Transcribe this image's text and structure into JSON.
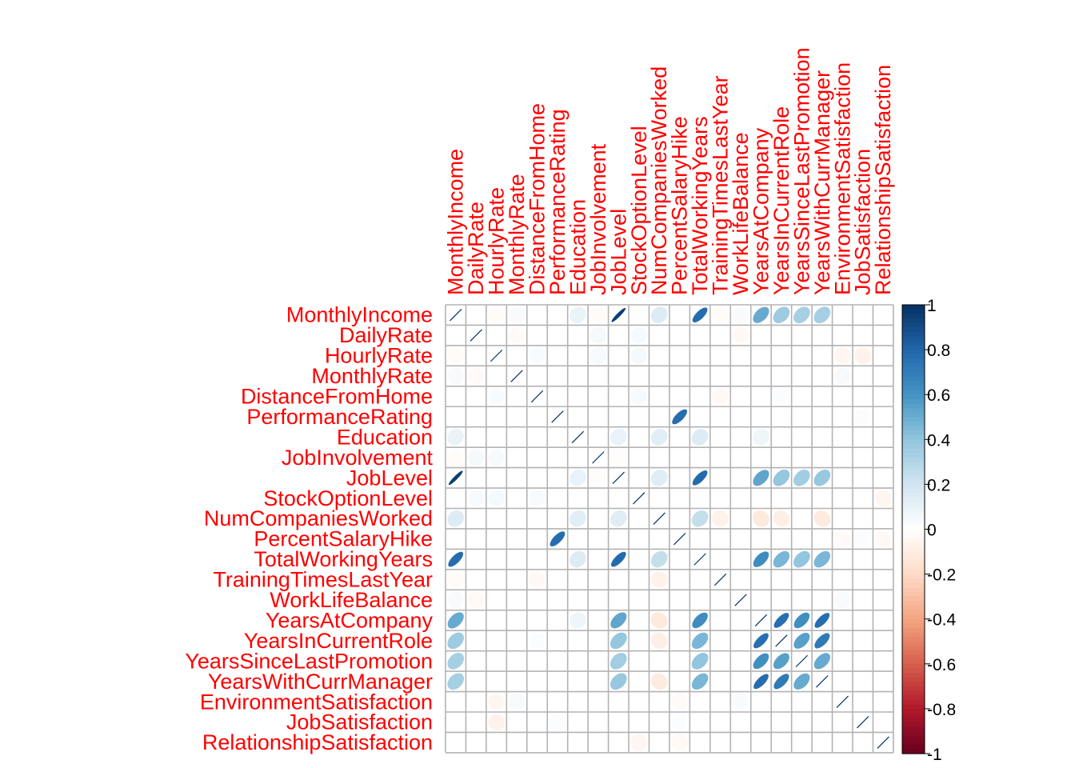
{
  "chart_data": {
    "type": "heatmap",
    "plot_style": "correlation ellipse matrix",
    "variables": [
      "MonthlyIncome",
      "DailyRate",
      "HourlyRate",
      "MonthlyRate",
      "DistanceFromHome",
      "PerformanceRating",
      "Education",
      "JobInvolvement",
      "JobLevel",
      "StockOptionLevel",
      "NumCompaniesWorked",
      "PercentSalaryHike",
      "TotalWorkingYears",
      "TrainingTimesLastYear",
      "WorkLifeBalance",
      "YearsAtCompany",
      "YearsInCurrentRole",
      "YearsSinceLastPromotion",
      "YearsWithCurrManager",
      "EnvironmentSatisfaction",
      "JobSatisfaction",
      "RelationshipSatisfaction"
    ],
    "correlations": [
      {
        "a": 0,
        "b": 8,
        "r": 0.95
      },
      {
        "a": 0,
        "b": 12,
        "r": 0.77
      },
      {
        "a": 0,
        "b": 15,
        "r": 0.51
      },
      {
        "a": 0,
        "b": 16,
        "r": 0.36
      },
      {
        "a": 0,
        "b": 17,
        "r": 0.34
      },
      {
        "a": 0,
        "b": 18,
        "r": 0.34
      },
      {
        "a": 0,
        "b": 6,
        "r": 0.09
      },
      {
        "a": 0,
        "b": 10,
        "r": 0.15
      },
      {
        "a": 0,
        "b": 7,
        "r": -0.02
      },
      {
        "a": 0,
        "b": 3,
        "r": 0.03
      },
      {
        "a": 0,
        "b": 2,
        "r": -0.02
      },
      {
        "a": 0,
        "b": 9,
        "r": 0.01
      },
      {
        "a": 0,
        "b": 13,
        "r": -0.02
      },
      {
        "a": 0,
        "b": 14,
        "r": 0.03
      },
      {
        "a": 1,
        "b": 14,
        "r": -0.04
      },
      {
        "a": 1,
        "b": 9,
        "r": 0.04
      },
      {
        "a": 1,
        "b": 7,
        "r": 0.05
      },
      {
        "a": 1,
        "b": 3,
        "r": -0.03
      },
      {
        "a": 2,
        "b": 9,
        "r": 0.05
      },
      {
        "a": 2,
        "b": 19,
        "r": -0.05
      },
      {
        "a": 2,
        "b": 20,
        "r": -0.07
      },
      {
        "a": 2,
        "b": 4,
        "r": 0.03
      },
      {
        "a": 2,
        "b": 7,
        "r": 0.04
      },
      {
        "a": 3,
        "b": 19,
        "r": 0.04
      },
      {
        "a": 4,
        "b": 9,
        "r": 0.04
      },
      {
        "a": 4,
        "b": 13,
        "r": -0.04
      },
      {
        "a": 4,
        "b": 16,
        "r": 0.02
      },
      {
        "a": 5,
        "b": 11,
        "r": 0.77
      },
      {
        "a": 5,
        "b": 20,
        "r": 0.02
      },
      {
        "a": 6,
        "b": 8,
        "r": 0.1
      },
      {
        "a": 6,
        "b": 10,
        "r": 0.13
      },
      {
        "a": 6,
        "b": 12,
        "r": 0.15
      },
      {
        "a": 6,
        "b": 15,
        "r": 0.07
      },
      {
        "a": 7,
        "b": 8,
        "r": -0.01
      },
      {
        "a": 8,
        "b": 12,
        "r": 0.78
      },
      {
        "a": 8,
        "b": 15,
        "r": 0.53
      },
      {
        "a": 8,
        "b": 16,
        "r": 0.39
      },
      {
        "a": 8,
        "b": 17,
        "r": 0.35
      },
      {
        "a": 8,
        "b": 18,
        "r": 0.38
      },
      {
        "a": 8,
        "b": 10,
        "r": 0.14
      },
      {
        "a": 9,
        "b": 21,
        "r": -0.05
      },
      {
        "a": 9,
        "b": 12,
        "r": 0.01
      },
      {
        "a": 10,
        "b": 12,
        "r": 0.24
      },
      {
        "a": 10,
        "b": 15,
        "r": -0.12
      },
      {
        "a": 10,
        "b": 16,
        "r": -0.09
      },
      {
        "a": 10,
        "b": 18,
        "r": -0.11
      },
      {
        "a": 10,
        "b": 13,
        "r": -0.07
      },
      {
        "a": 12,
        "b": 15,
        "r": 0.63
      },
      {
        "a": 12,
        "b": 16,
        "r": 0.46
      },
      {
        "a": 12,
        "b": 17,
        "r": 0.4
      },
      {
        "a": 12,
        "b": 18,
        "r": 0.46
      },
      {
        "a": 13,
        "b": 15,
        "r": 0.0
      },
      {
        "a": 14,
        "b": 19,
        "r": 0.03
      },
      {
        "a": 15,
        "b": 16,
        "r": 0.76
      },
      {
        "a": 15,
        "b": 17,
        "r": 0.62
      },
      {
        "a": 15,
        "b": 18,
        "r": 0.77
      },
      {
        "a": 16,
        "b": 17,
        "r": 0.55
      },
      {
        "a": 16,
        "b": 18,
        "r": 0.71
      },
      {
        "a": 17,
        "b": 18,
        "r": 0.51
      },
      {
        "a": 11,
        "b": 19,
        "r": -0.03
      },
      {
        "a": 11,
        "b": 20,
        "r": 0.02
      },
      {
        "a": 11,
        "b": 21,
        "r": -0.04
      }
    ],
    "colorbar": {
      "range": [
        -1,
        1
      ],
      "ticks": [
        "1",
        "0.8",
        "0.6",
        "0.4",
        "0.2",
        "0",
        "-0.2",
        "-0.4",
        "-0.6",
        "-0.8",
        "-1"
      ]
    },
    "label_color": "#ff0000",
    "grid": true
  }
}
